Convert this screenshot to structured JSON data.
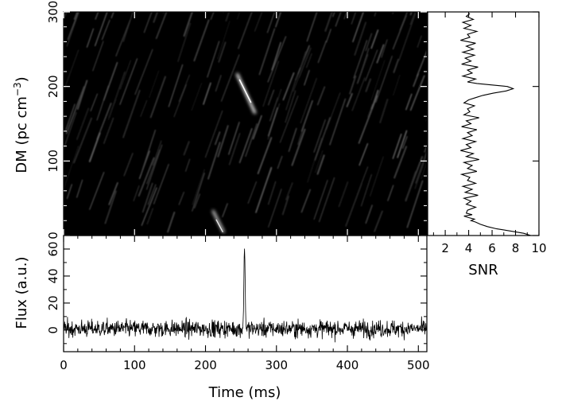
{
  "chart_data": [
    {
      "type": "heatmap",
      "panel": "dm-time",
      "ylabel_prefix": "DM (pc cm",
      "ylabel_sup": "−3",
      "ylabel_suffix": ")",
      "xlim": [
        0,
        512
      ],
      "ylim": [
        0,
        300
      ],
      "yticks": [
        0,
        100,
        200,
        300
      ],
      "colormap": [
        "#000000",
        "#ffffff"
      ],
      "features": [
        {
          "time_ms": 256,
          "dm": 197,
          "intensity": 1.0
        },
        {
          "time_ms": 222,
          "dm": 5,
          "intensity": 0.85
        }
      ]
    },
    {
      "type": "line",
      "panel": "snr-vs-dm",
      "xlabel": "SNR",
      "xlim": [
        0.5,
        10
      ],
      "ylim": [
        0,
        300
      ],
      "xticks": [
        2,
        4,
        6,
        8,
        10
      ],
      "series": [
        {
          "points": [
            [
              9.3,
              0
            ],
            [
              8.7,
              3
            ],
            [
              7.6,
              6
            ],
            [
              6.4,
              9
            ],
            [
              5.6,
              12
            ],
            [
              5.0,
              15
            ],
            [
              4.6,
              18
            ],
            [
              4.2,
              20
            ],
            [
              4.5,
              22
            ],
            [
              4.0,
              24
            ],
            [
              3.6,
              26
            ],
            [
              4.3,
              28
            ],
            [
              3.8,
              30
            ],
            [
              3.9,
              34
            ],
            [
              4.6,
              38
            ],
            [
              3.8,
              42
            ],
            [
              4.2,
              46
            ],
            [
              3.6,
              50
            ],
            [
              4.8,
              54
            ],
            [
              3.7,
              58
            ],
            [
              4.3,
              62
            ],
            [
              3.5,
              66
            ],
            [
              4.6,
              70
            ],
            [
              3.9,
              74
            ],
            [
              4.1,
              78
            ],
            [
              3.4,
              82
            ],
            [
              4.7,
              86
            ],
            [
              3.9,
              90
            ],
            [
              4.3,
              94
            ],
            [
              3.6,
              98
            ],
            [
              4.9,
              102
            ],
            [
              3.8,
              106
            ],
            [
              4.4,
              110
            ],
            [
              3.3,
              114
            ],
            [
              4.2,
              118
            ],
            [
              3.8,
              122
            ],
            [
              4.6,
              126
            ],
            [
              3.5,
              130
            ],
            [
              4.3,
              134
            ],
            [
              3.9,
              138
            ],
            [
              4.7,
              142
            ],
            [
              3.4,
              146
            ],
            [
              4.2,
              150
            ],
            [
              3.8,
              154
            ],
            [
              4.9,
              158
            ],
            [
              3.6,
              162
            ],
            [
              4.1,
              166
            ],
            [
              3.9,
              170
            ],
            [
              4.5,
              174
            ],
            [
              3.6,
              178
            ],
            [
              4.0,
              182
            ],
            [
              4.6,
              185
            ],
            [
              5.2,
              188
            ],
            [
              6.1,
              191
            ],
            [
              7.2,
              194
            ],
            [
              7.8,
              197
            ],
            [
              7.3,
              200
            ],
            [
              6.0,
              202
            ],
            [
              4.7,
              204
            ],
            [
              3.9,
              206
            ],
            [
              4.6,
              210
            ],
            [
              3.5,
              214
            ],
            [
              4.3,
              218
            ],
            [
              3.9,
              222
            ],
            [
              4.8,
              226
            ],
            [
              3.4,
              230
            ],
            [
              4.2,
              234
            ],
            [
              3.7,
              238
            ],
            [
              4.5,
              242
            ],
            [
              3.5,
              246
            ],
            [
              4.4,
              250
            ],
            [
              3.8,
              254
            ],
            [
              4.6,
              258
            ],
            [
              3.3,
              262
            ],
            [
              4.1,
              266
            ],
            [
              3.9,
              270
            ],
            [
              4.7,
              274
            ],
            [
              3.6,
              278
            ],
            [
              4.2,
              282
            ],
            [
              3.5,
              286
            ],
            [
              4.4,
              290
            ],
            [
              3.8,
              294
            ],
            [
              4.1,
              298
            ]
          ]
        }
      ]
    },
    {
      "type": "line",
      "panel": "flux-vs-time",
      "xlabel": "Time (ms)",
      "ylabel": "Flux (a.u.)",
      "xlim": [
        0,
        512
      ],
      "ylim": [
        -16,
        70
      ],
      "xticks": [
        0,
        100,
        200,
        300,
        400,
        500
      ],
      "yticks": [
        0,
        20,
        40,
        60
      ],
      "series": [
        {
          "noise_amplitude": 9,
          "pulse": {
            "time_ms": 255,
            "peak": 61
          }
        }
      ]
    }
  ]
}
